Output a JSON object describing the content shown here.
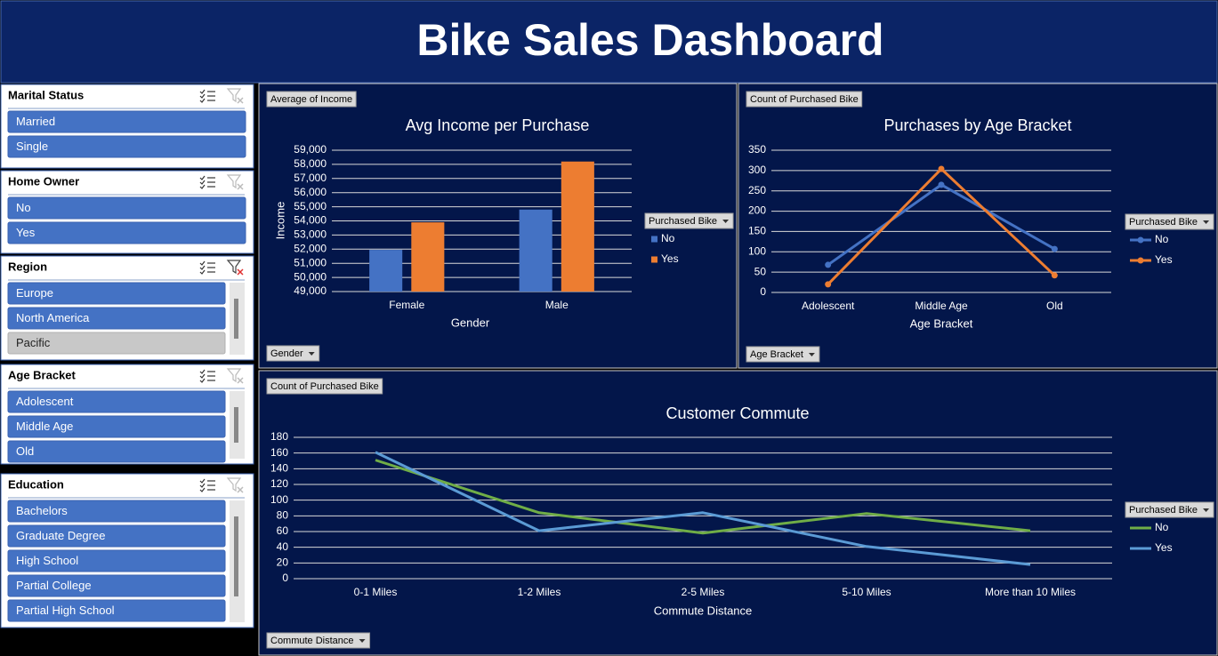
{
  "header": {
    "title": "Bike Sales Dashboard"
  },
  "slicers": [
    {
      "title": "Marital Status",
      "items": [
        {
          "label": "Married",
          "selected": true
        },
        {
          "label": "Single",
          "selected": true
        }
      ]
    },
    {
      "title": "Home Owner",
      "items": [
        {
          "label": "No",
          "selected": true
        },
        {
          "label": "Yes",
          "selected": true
        }
      ]
    },
    {
      "title": "Region",
      "items": [
        {
          "label": "Europe",
          "selected": true
        },
        {
          "label": "North America",
          "selected": true
        },
        {
          "label": "Pacific",
          "selected": false
        }
      ]
    },
    {
      "title": "Age Bracket",
      "items": [
        {
          "label": "Adolescent",
          "selected": true
        },
        {
          "label": "Middle Age",
          "selected": true
        },
        {
          "label": "Old",
          "selected": true
        }
      ]
    },
    {
      "title": "Education",
      "items": [
        {
          "label": "Bachelors",
          "selected": true
        },
        {
          "label": "Graduate Degree",
          "selected": true
        },
        {
          "label": "High School",
          "selected": true
        },
        {
          "label": "Partial College",
          "selected": true
        },
        {
          "label": "Partial High School",
          "selected": true
        }
      ]
    }
  ],
  "chart_data": [
    {
      "type": "bar",
      "title": "Avg Income per Purchase",
      "value_field": "Average of Income",
      "axis_field": "Gender",
      "legend_title": "Purchased Bike",
      "x_label": "Gender",
      "y_label": "Income",
      "categories": [
        "Female",
        "Male"
      ],
      "series": [
        {
          "name": "No",
          "color": "#4472c4",
          "values": [
            51950,
            54800
          ]
        },
        {
          "name": "Yes",
          "color": "#ed7d31",
          "values": [
            53900,
            58200
          ]
        }
      ],
      "ylim": [
        49000,
        59000
      ],
      "yticks": [
        {
          "value": 49000,
          "label": "49,000"
        },
        {
          "value": 50000,
          "label": "50,000"
        },
        {
          "value": 51000,
          "label": "51,000"
        },
        {
          "value": 52000,
          "label": "52,000"
        },
        {
          "value": 53000,
          "label": "53,000"
        },
        {
          "value": 54000,
          "label": "54,000"
        },
        {
          "value": 55000,
          "label": "55,000"
        },
        {
          "value": 56000,
          "label": "56,000"
        },
        {
          "value": 57000,
          "label": "57,000"
        },
        {
          "value": 58000,
          "label": "58,000"
        },
        {
          "value": 59000,
          "label": "59,000"
        }
      ],
      "grid": true
    },
    {
      "type": "line",
      "title": "Purchases by Age Bracket",
      "value_field": "Count of Purchased Bike",
      "axis_field": "Age Bracket",
      "legend_title": "Purchased Bike",
      "x_label": "Age Bracket",
      "categories": [
        "Adolescent",
        "Middle Age",
        "Old"
      ],
      "series": [
        {
          "name": "No",
          "color": "#4472c4",
          "values": [
            68,
            265,
            107
          ]
        },
        {
          "name": "Yes",
          "color": "#ed7d31",
          "values": [
            20,
            304,
            42
          ]
        }
      ],
      "ylim": [
        0,
        350
      ],
      "yticks": [
        0,
        50,
        100,
        150,
        200,
        250,
        300,
        350
      ],
      "grid": true,
      "markers": true
    },
    {
      "type": "line",
      "title": "Customer Commute",
      "value_field": "Count of Purchased Bike",
      "axis_field": "Commute Distance",
      "legend_title": "Purchased Bike",
      "x_label": "Commute Distance",
      "categories": [
        "0-1 Miles",
        "1-2 Miles",
        "2-5 Miles",
        "5-10 Miles",
        "More than 10 Miles"
      ],
      "series": [
        {
          "name": "No",
          "color": "#70ad47",
          "values": [
            151,
            84,
            58,
            83,
            61
          ]
        },
        {
          "name": "Yes",
          "color": "#5b9bd5",
          "values": [
            161,
            61,
            84,
            41,
            18
          ]
        }
      ],
      "ylim": [
        0,
        180
      ],
      "yticks": [
        0,
        20,
        40,
        60,
        80,
        100,
        120,
        140,
        160,
        180
      ],
      "grid": true,
      "markers": false
    }
  ]
}
